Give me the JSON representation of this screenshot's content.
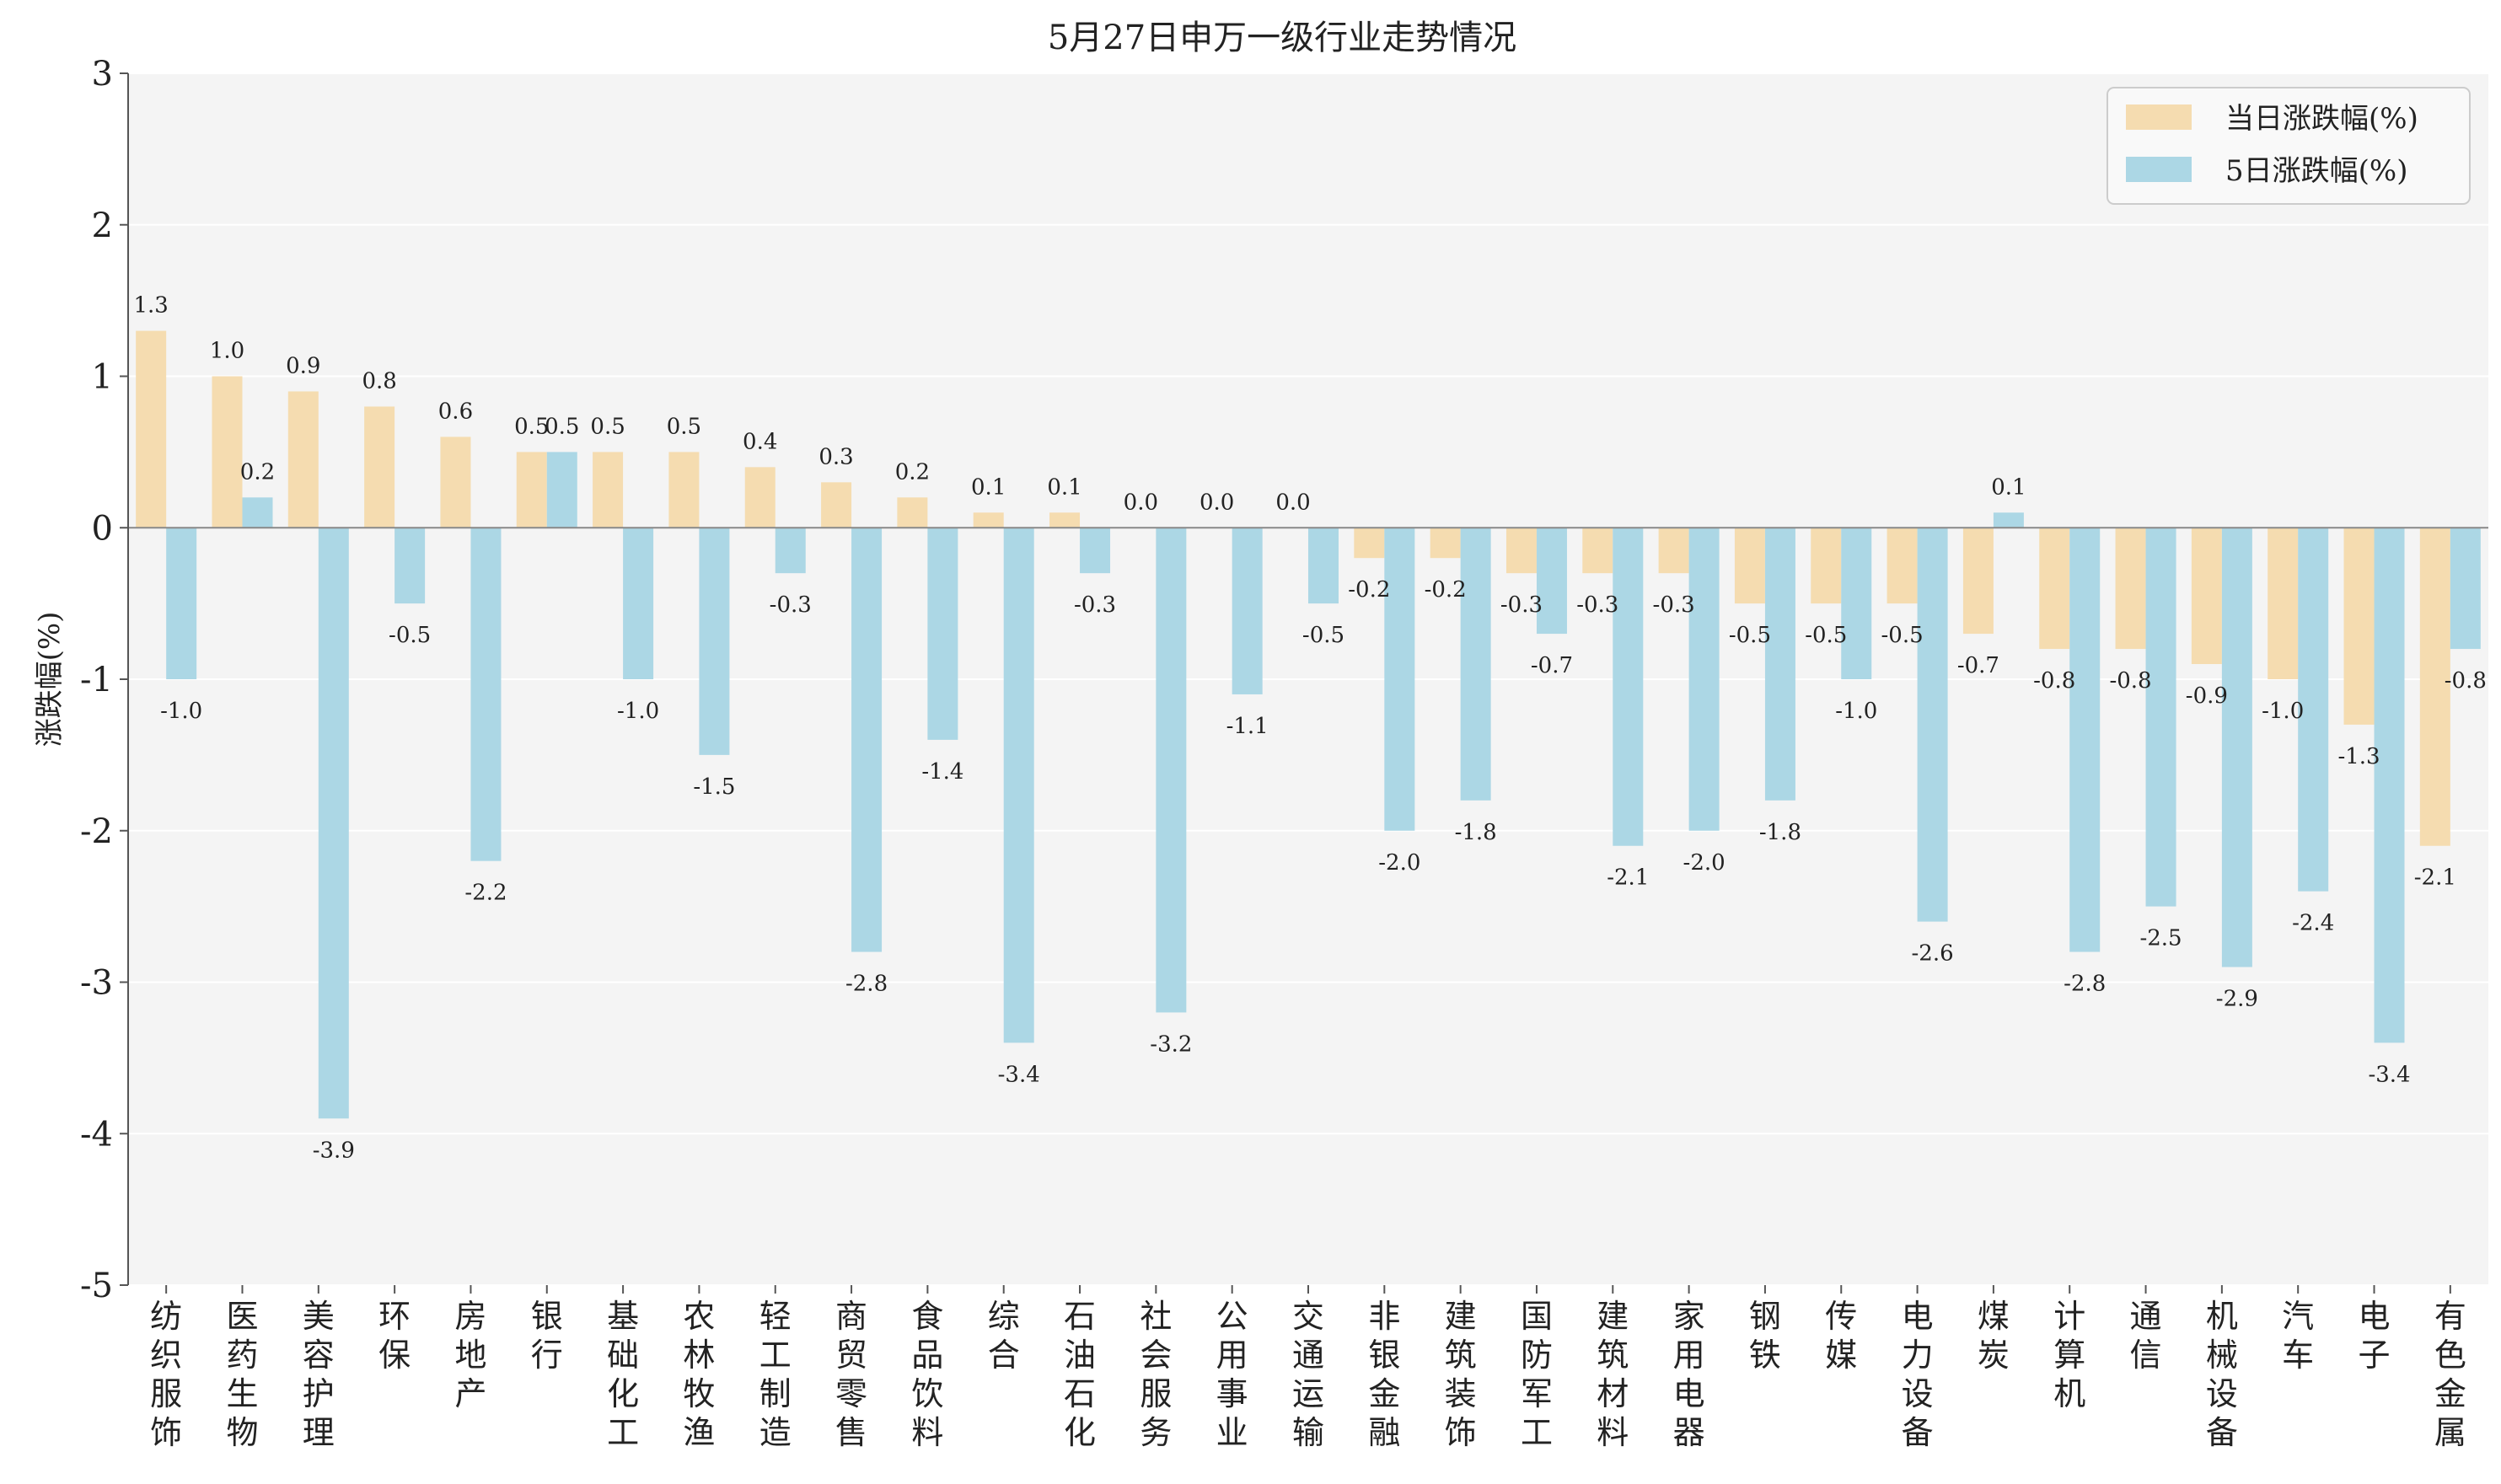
{
  "chart_data": {
    "type": "bar",
    "title": "5月27日申万一级行业走势情况",
    "ylabel": "涨跌幅(%)",
    "xlabel": "",
    "ylim": [
      -5,
      3
    ],
    "yticks": [
      "3",
      "2",
      "1",
      "0",
      "-1",
      "-2",
      "-3",
      "-4",
      "-5"
    ],
    "grid": "horizontal",
    "legend_position": "top-right",
    "categories": [
      "纺织服饰",
      "医药生物",
      "美容护理",
      "环保",
      "房地产",
      "银行",
      "基础化工",
      "农林牧渔",
      "轻工制造",
      "商贸零售",
      "食品饮料",
      "综合",
      "石油石化",
      "社会服务",
      "公用事业",
      "交通运输",
      "非银金融",
      "建筑装饰",
      "国防军工",
      "建筑材料",
      "家用电器",
      "钢铁",
      "传媒",
      "电力设备",
      "煤炭",
      "计算机",
      "通信",
      "机械设备",
      "汽车",
      "电子",
      "有色金属"
    ],
    "series": [
      {
        "name": "当日涨跌幅(%)",
        "color": "#f5dcb0",
        "values": [
          1.3,
          1.0,
          0.9,
          0.8,
          0.6,
          0.5,
          0.5,
          0.5,
          0.4,
          0.3,
          0.2,
          0.1,
          0.1,
          0.0,
          0.0,
          0.0,
          -0.2,
          -0.2,
          -0.3,
          -0.3,
          -0.3,
          -0.5,
          -0.5,
          -0.5,
          -0.7,
          -0.8,
          -0.8,
          -0.9,
          -1.0,
          -1.3,
          -2.1
        ],
        "labels": [
          "1.3",
          "1.0",
          "0.9",
          "0.8",
          "0.6",
          "0.5",
          "0.5",
          "0.5",
          "0.4",
          "0.3",
          "0.2",
          "0.1",
          "0.1",
          "0.0",
          "0.0",
          "0.0",
          "-0.2",
          "-0.2",
          "-0.3",
          "-0.3",
          "-0.3",
          "-0.5",
          "-0.5",
          "-0.5",
          "-0.7",
          "-0.8",
          "-0.8",
          "-0.9",
          "-1.0",
          "-1.3",
          "-2.1"
        ]
      },
      {
        "name": "5日涨跌幅(%)",
        "color": "#acd7e5",
        "values": [
          -1.0,
          0.2,
          -3.9,
          -0.5,
          -2.2,
          0.5,
          -1.0,
          -1.5,
          -0.3,
          -2.8,
          -1.4,
          -3.4,
          -0.3,
          -3.2,
          -1.1,
          -0.5,
          -2.0,
          -1.8,
          -0.7,
          -2.1,
          -2.0,
          -1.8,
          -1.0,
          -2.6,
          0.1,
          -2.8,
          -2.5,
          -2.9,
          -2.4,
          -3.4,
          -0.8
        ],
        "labels": [
          "-1.0",
          "0.2",
          "-3.9",
          "-0.5",
          "-2.2",
          "0.5",
          "-1.0",
          "-1.5",
          "-0.3",
          "-2.8",
          "-1.4",
          "-3.4",
          "-0.3",
          "-3.2",
          "-1.1",
          "-0.5",
          "-2.0",
          "-1.8",
          "-0.7",
          "-2.1",
          "-2.0",
          "-1.8",
          "-1.0",
          "-2.6",
          "0.1",
          "-2.8",
          "-2.5",
          "-2.9",
          "-2.4",
          "-3.4",
          "-0.8"
        ]
      }
    ]
  }
}
